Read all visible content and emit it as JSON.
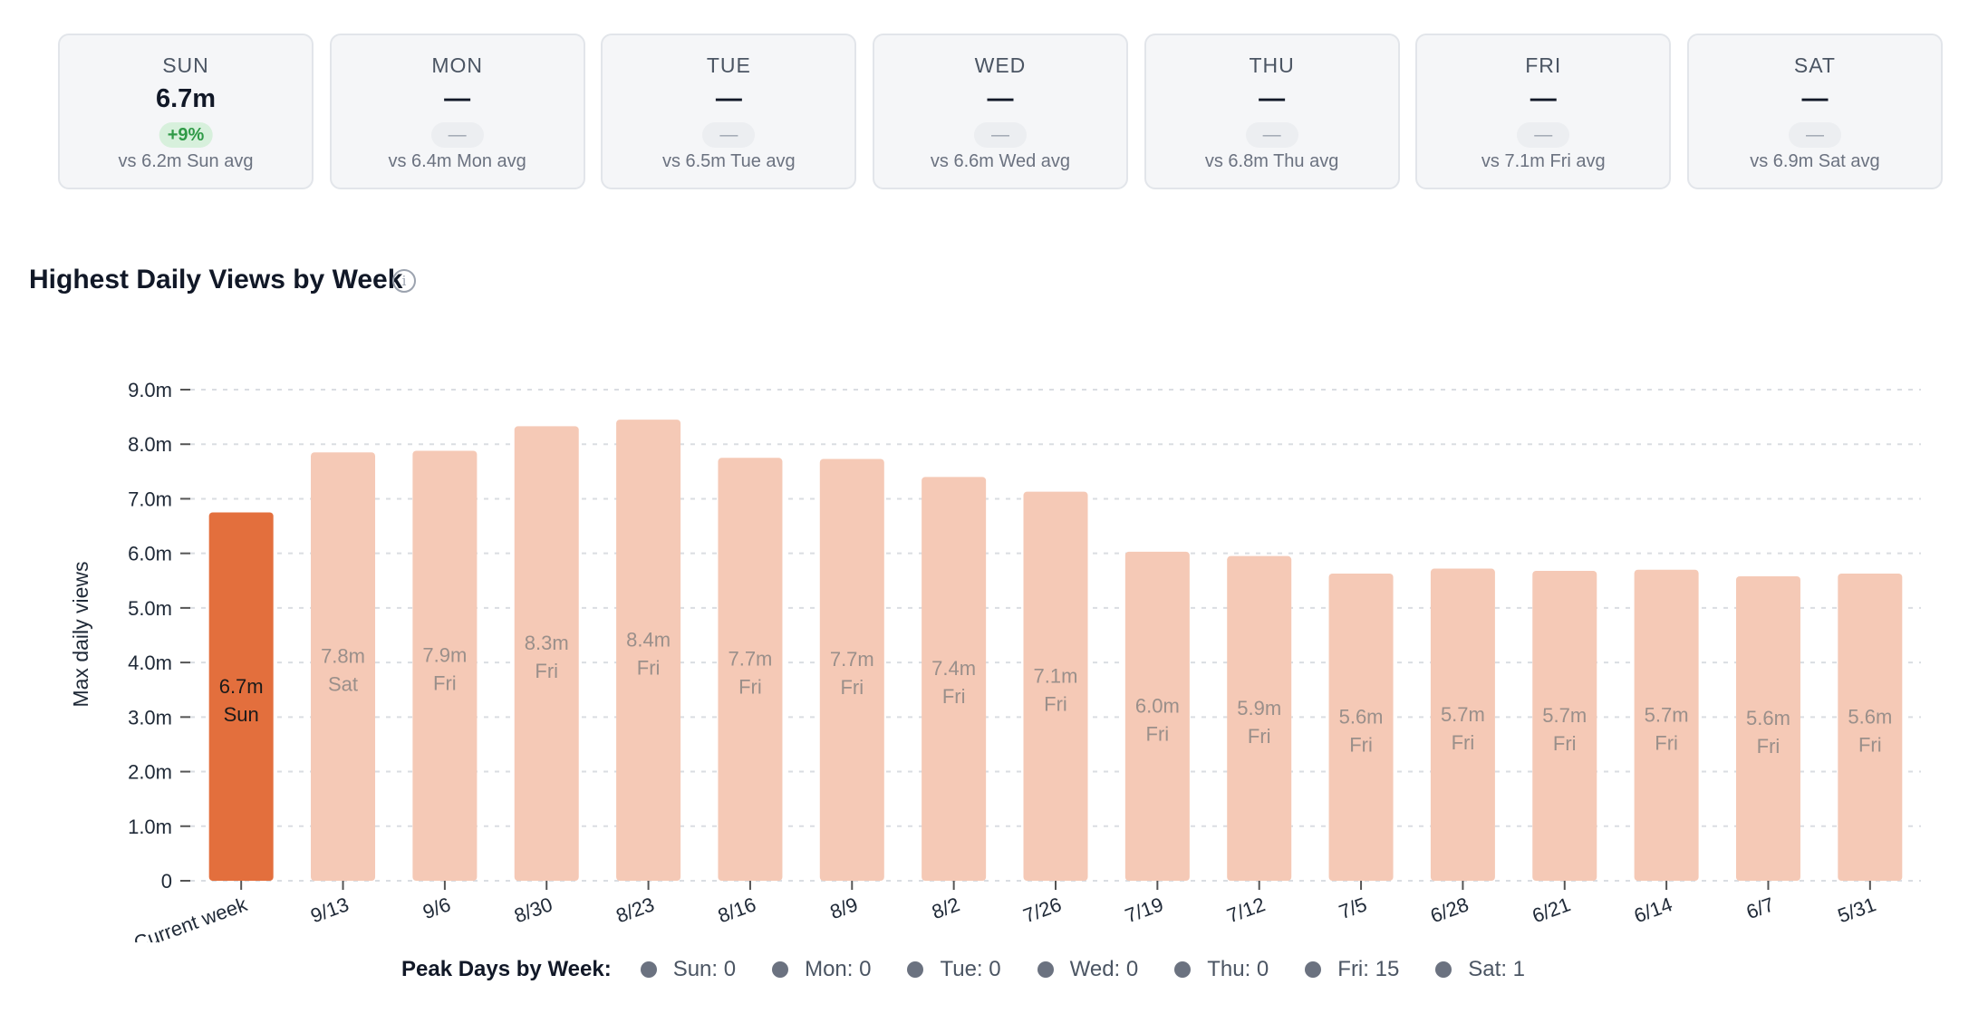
{
  "day_cards": [
    {
      "day": "SUN",
      "value": "6.7m",
      "change": "+9%",
      "change_positive": true,
      "avg": "vs 6.2m Sun avg"
    },
    {
      "day": "MON",
      "value": "—",
      "change": "—",
      "change_positive": false,
      "avg": "vs 6.4m Mon avg"
    },
    {
      "day": "TUE",
      "value": "—",
      "change": "—",
      "change_positive": false,
      "avg": "vs 6.5m Tue avg"
    },
    {
      "day": "WED",
      "value": "—",
      "change": "—",
      "change_positive": false,
      "avg": "vs 6.6m Wed avg"
    },
    {
      "day": "THU",
      "value": "—",
      "change": "—",
      "change_positive": false,
      "avg": "vs 6.8m Thu avg"
    },
    {
      "day": "FRI",
      "value": "—",
      "change": "—",
      "change_positive": false,
      "avg": "vs 7.1m Fri avg"
    },
    {
      "day": "SAT",
      "value": "—",
      "change": "—",
      "change_positive": false,
      "avg": "vs 6.9m Sat avg"
    }
  ],
  "chart_title": "Highest Daily Views by Week",
  "chart_data": {
    "type": "bar",
    "title": "Highest Daily Views by Week",
    "xlabel": "",
    "ylabel": "Max daily views",
    "ylim": [
      0,
      9000000
    ],
    "yticks": [
      0,
      1000000,
      2000000,
      3000000,
      4000000,
      5000000,
      6000000,
      7000000,
      8000000,
      9000000
    ],
    "ytick_labels": [
      "0",
      "1.0m",
      "2.0m",
      "3.0m",
      "4.0m",
      "5.0m",
      "6.0m",
      "7.0m",
      "8.0m",
      "9.0m"
    ],
    "grid": true,
    "categories": [
      "Current week",
      "9/13",
      "9/6",
      "8/30",
      "8/23",
      "8/16",
      "8/9",
      "8/2",
      "7/26",
      "7/19",
      "7/12",
      "7/5",
      "6/28",
      "6/21",
      "6/14",
      "6/7",
      "5/31"
    ],
    "values": [
      6750000,
      7850000,
      7880000,
      8330000,
      8450000,
      7750000,
      7730000,
      7400000,
      7130000,
      6030000,
      5950000,
      5630000,
      5720000,
      5680000,
      5700000,
      5580000,
      5630000
    ],
    "value_labels": [
      "6.7m",
      "7.8m",
      "7.9m",
      "8.3m",
      "8.4m",
      "7.7m",
      "7.7m",
      "7.4m",
      "7.1m",
      "6.0m",
      "5.9m",
      "5.6m",
      "5.7m",
      "5.7m",
      "5.7m",
      "5.6m",
      "5.6m"
    ],
    "peak_days": [
      "Sun",
      "Sat",
      "Fri",
      "Fri",
      "Fri",
      "Fri",
      "Fri",
      "Fri",
      "Fri",
      "Fri",
      "Fri",
      "Fri",
      "Fri",
      "Fri",
      "Fri",
      "Fri",
      "Fri"
    ],
    "highlight_index": 0,
    "colors": {
      "highlight": "#e36f3d",
      "normal": "#f5c9b6",
      "highlight_text": "#1a1a1a",
      "normal_text": "#9a8f8a",
      "grid": "#dadde2",
      "axis_text": "#1f2937"
    }
  },
  "legend": {
    "title": "Peak Days by Week:",
    "items": [
      {
        "label": "Sun: 0"
      },
      {
        "label": "Mon: 0"
      },
      {
        "label": "Tue: 0"
      },
      {
        "label": "Wed: 0"
      },
      {
        "label": "Thu: 0"
      },
      {
        "label": "Fri: 15"
      },
      {
        "label": "Sat: 1"
      }
    ]
  }
}
